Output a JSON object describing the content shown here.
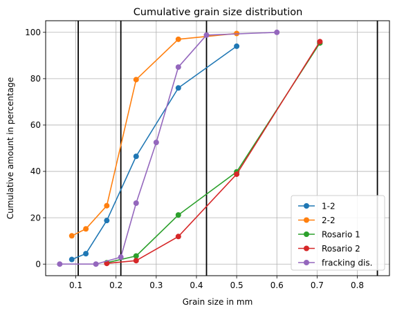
{
  "chart_data": {
    "type": "line",
    "title": "Cumulative grain size distribution",
    "xlabel": "Grain size in mm",
    "ylabel": "Cumulative amount in percentage",
    "xlim": [
      0.025,
      0.88
    ],
    "ylim": [
      -5,
      105
    ],
    "xticks": [
      0.1,
      0.2,
      0.3,
      0.4,
      0.5,
      0.6,
      0.7,
      0.8
    ],
    "xtick_labels": [
      "0.1",
      "0.2",
      "0.3",
      "0.4",
      "0.5",
      "0.6",
      "0.7",
      "0.8"
    ],
    "yticks": [
      0,
      20,
      40,
      60,
      80,
      100
    ],
    "ytick_labels": [
      "0",
      "20",
      "40",
      "60",
      "80",
      "100"
    ],
    "grid": true,
    "legend_position": "bottom-right",
    "vertical_lines": [
      0.106,
      0.212,
      0.425,
      0.85
    ],
    "series": [
      {
        "name": "1-2",
        "color": "#1f77b4",
        "x": [
          0.09,
          0.125,
          0.177,
          0.25,
          0.355,
          0.5
        ],
        "y": [
          2,
          4.5,
          18.8,
          46.5,
          76,
          94
        ]
      },
      {
        "name": "2-2",
        "color": "#ff7f0e",
        "x": [
          0.09,
          0.125,
          0.177,
          0.25,
          0.355,
          0.5
        ],
        "y": [
          12.2,
          15.2,
          25.2,
          79.6,
          97,
          99.5
        ]
      },
      {
        "name": "Rosario 1",
        "color": "#2ca02c",
        "x": [
          0.177,
          0.25,
          0.355,
          0.5,
          0.707
        ],
        "y": [
          0.6,
          3.5,
          21.2,
          39.8,
          95.4
        ]
      },
      {
        "name": "Rosario 2",
        "color": "#d62728",
        "x": [
          0.177,
          0.25,
          0.355,
          0.5,
          0.707
        ],
        "y": [
          0.3,
          1.5,
          11.9,
          38.8,
          96
        ]
      },
      {
        "name": "fracking dis.",
        "color": "#9467bd",
        "x": [
          0.06,
          0.15,
          0.212,
          0.25,
          0.3,
          0.355,
          0.425,
          0.6
        ],
        "y": [
          0,
          0,
          3,
          26.3,
          52.5,
          85,
          98.8,
          100
        ]
      }
    ]
  }
}
